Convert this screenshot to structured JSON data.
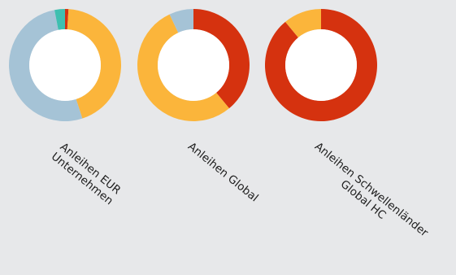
{
  "chart_data": {
    "type": "pie",
    "variant": "donut",
    "colors": {
      "red": "#d5320f",
      "yellow": "#fbb53b",
      "lightblue": "#a5c3d6",
      "teal": "#3ebfb0",
      "hole": "#ffffff",
      "background": "#e7e8ea"
    },
    "charts": [
      {
        "label_lines": [
          "Anleihen EUR",
          "Unternehmen"
        ],
        "slices": [
          {
            "color": "#d5320f",
            "value": 1
          },
          {
            "color": "#fbb53b",
            "value": 44
          },
          {
            "color": "#a5c3d6",
            "value": 52
          },
          {
            "color": "#3ebfb0",
            "value": 3
          }
        ]
      },
      {
        "label_lines": [
          "Anleihen Global"
        ],
        "slices": [
          {
            "color": "#d5320f",
            "value": 39
          },
          {
            "color": "#fbb53b",
            "value": 54
          },
          {
            "color": "#a5c3d6",
            "value": 7
          }
        ]
      },
      {
        "label_lines": [
          "Anleihen Schwellenländer",
          "Global HC"
        ],
        "slices": [
          {
            "color": "#d5320f",
            "value": 89
          },
          {
            "color": "#fbb53b",
            "value": 11
          }
        ]
      }
    ]
  }
}
